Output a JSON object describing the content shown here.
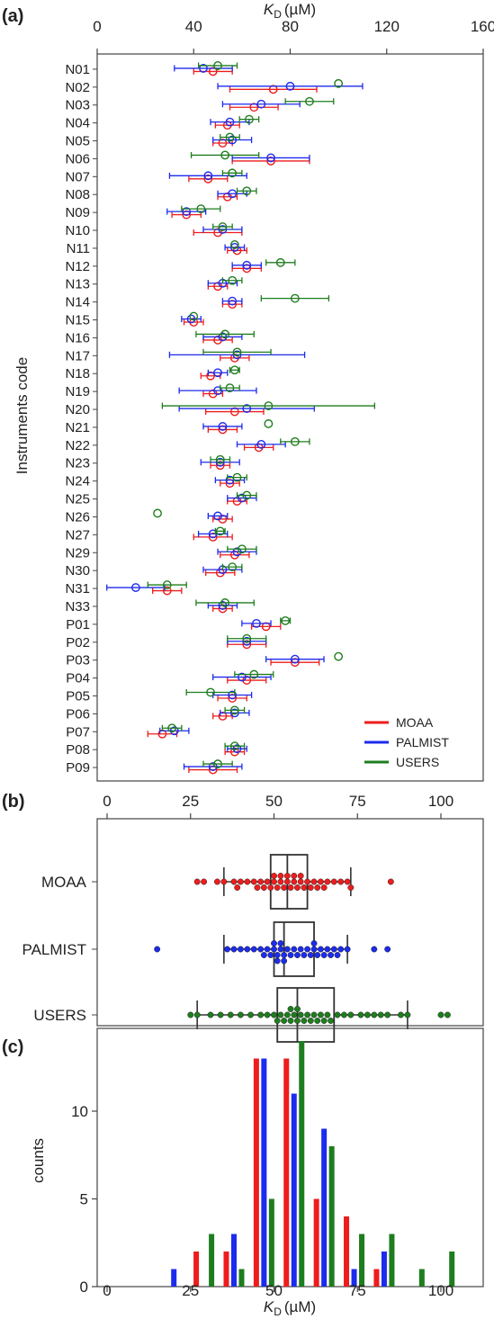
{
  "panels": {
    "a": "(a)",
    "b": "(b)",
    "c": "(c)"
  },
  "colors": {
    "MOAA": "#ee1c1c",
    "PALMIST": "#1c2bee",
    "USERS": "#1e7d1e"
  },
  "chart_data": [
    {
      "type": "scatter",
      "subtype": "point-with-error-bars",
      "orientation": "horizontal",
      "xlabel_italic": "K",
      "xlabel_sub": "D",
      "xlabel_unit": "(µM)",
      "xaxis_position": "top",
      "xlim": [
        0,
        160
      ],
      "xticks": [
        0,
        40,
        80,
        120,
        160
      ],
      "ylabel": "Instruments code",
      "legend_position": "bottom-right",
      "series_names": [
        "MOAA",
        "PALMIST",
        "USERS"
      ],
      "categories": [
        "N01",
        "N02",
        "N03",
        "N04",
        "N05",
        "N06",
        "N07",
        "N08",
        "N09",
        "N10",
        "N11",
        "N12",
        "N13",
        "N14",
        "N15",
        "N16",
        "N17",
        "N18",
        "N19",
        "N20",
        "N21",
        "N22",
        "N23",
        "N24",
        "N25",
        "N26",
        "N27",
        "N29",
        "N30",
        "N31",
        "N33",
        "P01",
        "P02",
        "P03",
        "P04",
        "P05",
        "P06",
        "P07",
        "P08",
        "P09"
      ],
      "series": [
        {
          "name": "MOAA",
          "values": [
            48,
            73,
            65,
            54,
            52,
            72,
            46,
            54,
            37,
            50,
            58,
            62,
            50,
            56,
            40,
            50,
            57,
            47,
            48,
            57,
            52,
            67,
            51,
            55,
            58,
            52,
            48,
            57,
            51,
            29,
            52,
            70,
            62,
            82,
            62,
            56,
            52,
            27,
            57,
            48
          ],
          "err_low": [
            8,
            18,
            10,
            5,
            4,
            16,
            8,
            4,
            6,
            10,
            4,
            6,
            4,
            4,
            4,
            6,
            6,
            4,
            4,
            12,
            6,
            6,
            4,
            4,
            4,
            4,
            8,
            6,
            6,
            6,
            4,
            6,
            8,
            10,
            8,
            6,
            4,
            6,
            4,
            10
          ],
          "err_high": [
            8,
            18,
            10,
            5,
            4,
            16,
            8,
            4,
            6,
            10,
            4,
            6,
            4,
            4,
            4,
            6,
            6,
            4,
            4,
            12,
            6,
            6,
            4,
            4,
            4,
            4,
            8,
            6,
            6,
            6,
            4,
            6,
            8,
            10,
            8,
            6,
            4,
            6,
            4,
            10
          ]
        },
        {
          "name": "PALMIST",
          "values": [
            44,
            80,
            68,
            55,
            56,
            72,
            46,
            56,
            37,
            52,
            57,
            62,
            52,
            56,
            39,
            52,
            58,
            50,
            50,
            62,
            52,
            68,
            51,
            55,
            60,
            50,
            48,
            58,
            52,
            16,
            52,
            66,
            62,
            82,
            60,
            56,
            57,
            32,
            58,
            48
          ],
          "err_low": [
            12,
            30,
            16,
            8,
            8,
            16,
            16,
            6,
            8,
            8,
            4,
            6,
            6,
            4,
            4,
            8,
            28,
            4,
            16,
            28,
            8,
            10,
            8,
            6,
            6,
            4,
            6,
            8,
            8,
            12,
            6,
            6,
            8,
            12,
            12,
            8,
            6,
            6,
            4,
            12
          ],
          "err_high": [
            12,
            30,
            16,
            8,
            8,
            16,
            16,
            6,
            8,
            8,
            4,
            6,
            6,
            4,
            4,
            8,
            28,
            4,
            16,
            28,
            8,
            10,
            8,
            6,
            6,
            4,
            6,
            8,
            8,
            12,
            6,
            6,
            8,
            12,
            12,
            8,
            6,
            6,
            4,
            12
          ]
        },
        {
          "name": "USERS",
          "values": [
            50,
            100,
            88,
            63,
            55,
            53,
            56,
            62,
            43,
            52,
            57,
            76,
            56,
            82,
            40,
            53,
            58,
            57,
            55,
            71,
            71,
            82,
            51,
            58,
            62,
            25,
            51,
            60,
            56,
            29,
            53,
            78,
            62,
            100,
            65,
            47,
            57,
            31,
            57,
            50
          ],
          "err_low": [
            8,
            0,
            10,
            4,
            4,
            14,
            4,
            4,
            8,
            4,
            0,
            6,
            4,
            14,
            0,
            12,
            14,
            2,
            4,
            44,
            0,
            6,
            4,
            4,
            4,
            0,
            2,
            6,
            4,
            8,
            12,
            2,
            8,
            0,
            8,
            10,
            4,
            4,
            4,
            6
          ],
          "err_high": [
            8,
            0,
            10,
            4,
            4,
            14,
            4,
            4,
            8,
            4,
            0,
            6,
            4,
            14,
            0,
            12,
            14,
            2,
            4,
            44,
            0,
            6,
            4,
            4,
            4,
            0,
            2,
            6,
            4,
            8,
            12,
            2,
            8,
            0,
            8,
            10,
            4,
            4,
            4,
            6
          ]
        }
      ]
    },
    {
      "type": "box",
      "orientation": "horizontal",
      "xaxis_position": "top",
      "xlim": [
        0,
        110
      ],
      "xticks": [
        0,
        25,
        50,
        75,
        100
      ],
      "categories": [
        "MOAA",
        "PALMIST",
        "USERS"
      ],
      "boxes": [
        {
          "name": "MOAA",
          "whisker_low": 35,
          "q1": 49,
          "median": 54,
          "q3": 60,
          "whisker_high": 73,
          "points": [
            27,
            29,
            33,
            35,
            38,
            39,
            40,
            42,
            44,
            45,
            46,
            47,
            48,
            49,
            50,
            50,
            51,
            52,
            52,
            53,
            54,
            54,
            55,
            56,
            56,
            57,
            58,
            58,
            59,
            60,
            61,
            62,
            63,
            64,
            65,
            66,
            68,
            70,
            72,
            73,
            85
          ]
        },
        {
          "name": "PALMIST",
          "whisker_low": 35,
          "q1": 50,
          "median": 53,
          "q3": 62,
          "whisker_high": 72,
          "points": [
            15,
            36,
            38,
            40,
            42,
            44,
            46,
            47,
            48,
            49,
            50,
            50,
            51,
            51,
            52,
            52,
            53,
            53,
            54,
            55,
            56,
            57,
            58,
            59,
            60,
            61,
            62,
            62,
            63,
            64,
            65,
            66,
            67,
            68,
            69,
            70,
            72,
            80,
            84
          ]
        },
        {
          "name": "USERS",
          "whisker_low": 27,
          "q1": 51,
          "median": 57,
          "q3": 68,
          "whisker_high": 90,
          "points": [
            25,
            27,
            31,
            34,
            37,
            40,
            43,
            46,
            48,
            50,
            51,
            52,
            53,
            54,
            55,
            55,
            56,
            57,
            57,
            58,
            59,
            60,
            61,
            62,
            63,
            64,
            65,
            66,
            67,
            69,
            71,
            73,
            76,
            78,
            80,
            82,
            84,
            88,
            90,
            100,
            102
          ]
        }
      ]
    },
    {
      "type": "bar",
      "subtype": "grouped-histogram",
      "xlabel_italic": "K",
      "xlabel_sub": "D",
      "xlabel_unit": "(µM)",
      "ylabel": "counts",
      "xlim": [
        0,
        110
      ],
      "ylim": [
        0,
        14
      ],
      "xticks": [
        0,
        25,
        50,
        75,
        100
      ],
      "yticks": [
        0,
        5,
        10
      ],
      "bin_centers": [
        20,
        29,
        38,
        47,
        56,
        65,
        74,
        83,
        92,
        101
      ],
      "series": [
        {
          "name": "MOAA",
          "values": [
            0,
            2,
            2,
            13,
            13,
            5,
            4,
            1,
            0,
            0
          ]
        },
        {
          "name": "PALMIST",
          "values": [
            1,
            0,
            3,
            13,
            11,
            9,
            1,
            2,
            0,
            0
          ]
        },
        {
          "name": "USERS",
          "values": [
            0,
            3,
            1,
            5,
            14,
            8,
            3,
            3,
            1,
            2
          ]
        }
      ]
    }
  ]
}
